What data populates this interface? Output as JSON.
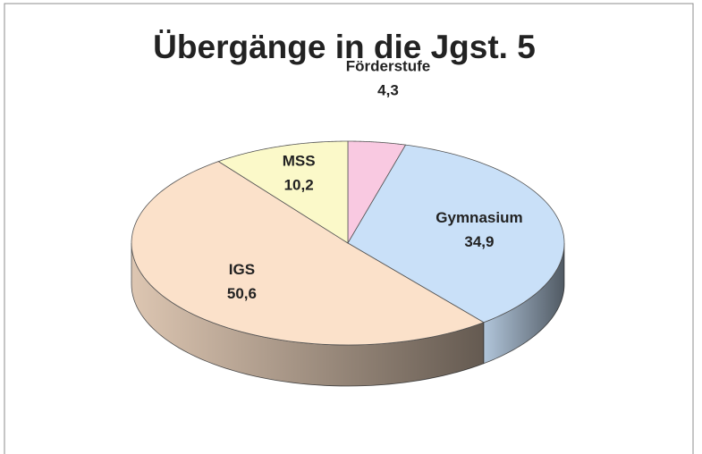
{
  "chart_data": {
    "type": "pie",
    "title": "Übergänge in die Jgst. 5",
    "categories": [
      "Förderstufe",
      "Gymnasium",
      "IGS",
      "MSS"
    ],
    "values": [
      4.3,
      34.9,
      50.6,
      10.2
    ],
    "value_labels": [
      "4,3",
      "34,9",
      "50,6",
      "10,2"
    ],
    "colors": [
      "#f9c9e1",
      "#c9e0f8",
      "#fbe1ca",
      "#fbf9c9"
    ]
  }
}
